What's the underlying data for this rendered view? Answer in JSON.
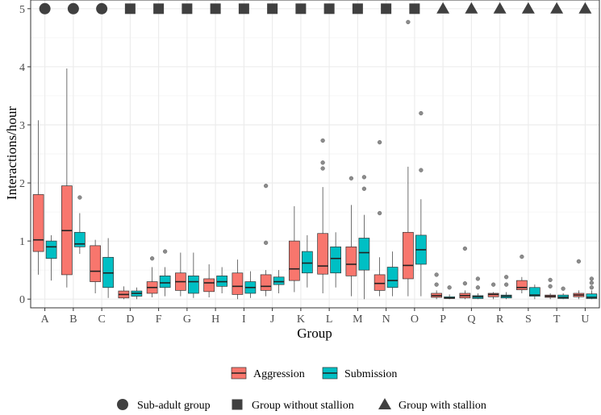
{
  "chart_data": {
    "type": "box",
    "xlabel": "Group",
    "ylabel": "Interactions/hour",
    "ylim": [
      -0.15,
      5.15
    ],
    "yticks": [
      0,
      1,
      2,
      3,
      4,
      5
    ],
    "grid": true,
    "categories": [
      "A",
      "B",
      "C",
      "D",
      "F",
      "G",
      "H",
      "I",
      "J",
      "K",
      "L",
      "M",
      "N",
      "O",
      "P",
      "Q",
      "R",
      "S",
      "T",
      "U"
    ],
    "colors": {
      "Aggression": "#F8766D",
      "Submission": "#00BFC4",
      "marker": "#404040"
    },
    "series": [
      {
        "name": "Aggression",
        "boxes": [
          {
            "min": 0.42,
            "q1": 0.82,
            "median": 1.02,
            "q3": 1.8,
            "max": 3.08,
            "outliers": []
          },
          {
            "min": 0.2,
            "q1": 0.42,
            "median": 1.18,
            "q3": 1.95,
            "max": 3.97,
            "outliers": []
          },
          {
            "min": 0.1,
            "q1": 0.3,
            "median": 0.48,
            "q3": 0.92,
            "max": 1.02,
            "outliers": []
          },
          {
            "min": 0.0,
            "q1": 0.02,
            "median": 0.08,
            "q3": 0.14,
            "max": 0.22,
            "outliers": []
          },
          {
            "min": 0.03,
            "q1": 0.1,
            "median": 0.2,
            "q3": 0.3,
            "max": 0.55,
            "outliers": [
              0.7
            ]
          },
          {
            "min": 0.05,
            "q1": 0.15,
            "median": 0.3,
            "q3": 0.45,
            "max": 0.8,
            "outliers": []
          },
          {
            "min": 0.03,
            "q1": 0.13,
            "median": 0.28,
            "q3": 0.35,
            "max": 0.6,
            "outliers": []
          },
          {
            "min": 0.0,
            "q1": 0.08,
            "median": 0.22,
            "q3": 0.45,
            "max": 0.68,
            "outliers": []
          },
          {
            "min": 0.05,
            "q1": 0.15,
            "median": 0.22,
            "q3": 0.42,
            "max": 0.5,
            "outliers": [
              0.97,
              1.95
            ]
          },
          {
            "min": 0.12,
            "q1": 0.32,
            "median": 0.52,
            "q3": 1.0,
            "max": 1.6,
            "outliers": []
          },
          {
            "min": 0.1,
            "q1": 0.43,
            "median": 0.57,
            "q3": 1.13,
            "max": 1.93,
            "outliers": [
              2.25,
              2.35,
              2.73
            ]
          },
          {
            "min": 0.05,
            "q1": 0.4,
            "median": 0.6,
            "q3": 0.9,
            "max": 1.62,
            "outliers": [
              2.08
            ]
          },
          {
            "min": 0.05,
            "q1": 0.15,
            "median": 0.27,
            "q3": 0.42,
            "max": 0.72,
            "outliers": [
              1.48,
              2.7
            ]
          },
          {
            "min": 0.05,
            "q1": 0.35,
            "median": 0.58,
            "q3": 1.15,
            "max": 2.28,
            "outliers": [
              4.77
            ]
          },
          {
            "min": 0.0,
            "q1": 0.03,
            "median": 0.06,
            "q3": 0.1,
            "max": 0.15,
            "outliers": [
              0.25,
              0.42
            ]
          },
          {
            "min": 0.0,
            "q1": 0.02,
            "median": 0.06,
            "q3": 0.1,
            "max": 0.15,
            "outliers": [
              0.27,
              0.87
            ]
          },
          {
            "min": 0.0,
            "q1": 0.04,
            "median": 0.08,
            "q3": 0.1,
            "max": 0.12,
            "outliers": [
              0.25
            ]
          },
          {
            "min": 0.1,
            "q1": 0.16,
            "median": 0.2,
            "q3": 0.32,
            "max": 0.38,
            "outliers": [
              0.73
            ]
          },
          {
            "min": 0.0,
            "q1": 0.03,
            "median": 0.05,
            "q3": 0.07,
            "max": 0.1,
            "outliers": [
              0.22,
              0.33
            ]
          },
          {
            "min": 0.0,
            "q1": 0.04,
            "median": 0.07,
            "q3": 0.1,
            "max": 0.15,
            "outliers": [
              0.65
            ]
          }
        ]
      },
      {
        "name": "Submission",
        "boxes": [
          {
            "min": 0.32,
            "q1": 0.7,
            "median": 0.9,
            "q3": 1.0,
            "max": 1.1,
            "outliers": []
          },
          {
            "min": 0.78,
            "q1": 0.9,
            "median": 0.95,
            "q3": 1.15,
            "max": 1.48,
            "outliers": [
              1.75
            ]
          },
          {
            "min": 0.02,
            "q1": 0.2,
            "median": 0.45,
            "q3": 0.72,
            "max": 1.05,
            "outliers": []
          },
          {
            "min": 0.0,
            "q1": 0.05,
            "median": 0.1,
            "q3": 0.14,
            "max": 0.2,
            "outliers": []
          },
          {
            "min": 0.05,
            "q1": 0.2,
            "median": 0.28,
            "q3": 0.4,
            "max": 0.55,
            "outliers": [
              0.82
            ]
          },
          {
            "min": 0.02,
            "q1": 0.1,
            "median": 0.3,
            "q3": 0.4,
            "max": 0.8,
            "outliers": []
          },
          {
            "min": 0.1,
            "q1": 0.22,
            "median": 0.3,
            "q3": 0.4,
            "max": 0.55,
            "outliers": []
          },
          {
            "min": 0.02,
            "q1": 0.1,
            "median": 0.2,
            "q3": 0.3,
            "max": 0.48,
            "outliers": []
          },
          {
            "min": 0.1,
            "q1": 0.25,
            "median": 0.3,
            "q3": 0.38,
            "max": 0.5,
            "outliers": []
          },
          {
            "min": 0.2,
            "q1": 0.45,
            "median": 0.62,
            "q3": 0.82,
            "max": 1.1,
            "outliers": []
          },
          {
            "min": 0.2,
            "q1": 0.45,
            "median": 0.7,
            "q3": 0.9,
            "max": 1.15,
            "outliers": []
          },
          {
            "min": 0.0,
            "q1": 0.5,
            "median": 0.8,
            "q3": 1.05,
            "max": 1.45,
            "outliers": [
              1.9,
              2.1
            ]
          },
          {
            "min": 0.05,
            "q1": 0.2,
            "median": 0.32,
            "q3": 0.55,
            "max": 0.82,
            "outliers": []
          },
          {
            "min": 0.05,
            "q1": 0.6,
            "median": 0.85,
            "q3": 1.1,
            "max": 1.72,
            "outliers": [
              2.22,
              3.2
            ]
          },
          {
            "min": 0.0,
            "q1": 0.01,
            "median": 0.02,
            "q3": 0.04,
            "max": 0.08,
            "outliers": [
              0.2
            ]
          },
          {
            "min": 0.0,
            "q1": 0.01,
            "median": 0.04,
            "q3": 0.06,
            "max": 0.1,
            "outliers": [
              0.2,
              0.35
            ]
          },
          {
            "min": 0.0,
            "q1": 0.02,
            "median": 0.05,
            "q3": 0.07,
            "max": 0.12,
            "outliers": [
              0.25,
              0.38
            ]
          },
          {
            "min": 0.0,
            "q1": 0.05,
            "median": 0.07,
            "q3": 0.2,
            "max": 0.25,
            "outliers": []
          },
          {
            "min": 0.0,
            "q1": 0.01,
            "median": 0.03,
            "q3": 0.07,
            "max": 0.1,
            "outliers": [
              0.18
            ]
          },
          {
            "min": 0.0,
            "q1": 0.01,
            "median": 0.03,
            "q3": 0.09,
            "max": 0.15,
            "outliers": [
              0.2,
              0.28,
              0.35
            ]
          }
        ]
      }
    ],
    "markers": {
      "y": 5,
      "shapes": [
        "circle",
        "circle",
        "circle",
        "square",
        "square",
        "square",
        "square",
        "square",
        "square",
        "square",
        "square",
        "square",
        "square",
        "square",
        "triangle",
        "triangle",
        "triangle",
        "triangle",
        "triangle",
        "triangle"
      ]
    },
    "fill_legend": [
      "Aggression",
      "Submission"
    ],
    "shape_legend": [
      {
        "shape": "circle",
        "label": "Sub-adult group"
      },
      {
        "shape": "square",
        "label": "Group without stallion"
      },
      {
        "shape": "triangle",
        "label": "Group with stallion"
      }
    ],
    "legend_position": "bottom"
  }
}
